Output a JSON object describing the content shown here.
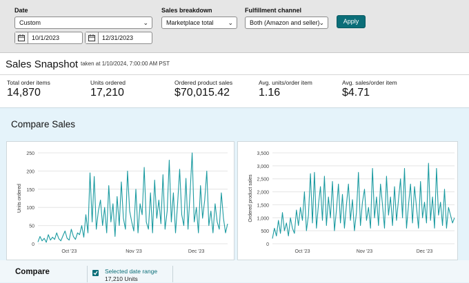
{
  "filters": {
    "date_label": "Date",
    "date_select": "Custom",
    "start_date": "10/1/2023",
    "end_date": "12/31/2023",
    "breakdown_label": "Sales breakdown",
    "breakdown_select": "Marketplace total",
    "fulfillment_label": "Fulfillment channel",
    "fulfillment_select": "Both (Amazon and seller)",
    "apply_label": "Apply"
  },
  "snapshot": {
    "title": "Sales Snapshot",
    "taken": "taken at 1/10/2024, 7:00:00 AM PST",
    "metrics": [
      {
        "label": "Total order items",
        "value": "14,870"
      },
      {
        "label": "Units ordered",
        "value": "17,210"
      },
      {
        "label": "Ordered product sales",
        "value": "$70,015.42"
      },
      {
        "label": "Avg. units/order item",
        "value": "1.16"
      },
      {
        "label": "Avg. sales/order item",
        "value": "$4.71"
      }
    ]
  },
  "compare": {
    "title": "Compare Sales",
    "bottom_title": "Compare",
    "range_label": "Selected date range",
    "range_units": "17,210 Units"
  },
  "colors": {
    "series": "#1a9aa0",
    "accent": "#0b6e78"
  },
  "chart_data": [
    {
      "type": "line",
      "ylabel": "Units ordered",
      "ylim": [
        0,
        250
      ],
      "yticks": [
        0,
        50,
        100,
        150,
        200,
        250
      ],
      "xticks": [
        {
          "label": "Oct '23",
          "x": 16
        },
        {
          "label": "Nov '23",
          "x": 47
        },
        {
          "label": "Dec '23",
          "x": 77
        }
      ],
      "x": [
        1,
        2,
        3,
        4,
        5,
        6,
        7,
        8,
        9,
        10,
        11,
        12,
        13,
        14,
        15,
        16,
        17,
        18,
        19,
        20,
        21,
        22,
        23,
        24,
        25,
        26,
        27,
        28,
        29,
        30,
        31,
        32,
        33,
        34,
        35,
        36,
        37,
        38,
        39,
        40,
        41,
        42,
        43,
        44,
        45,
        46,
        47,
        48,
        49,
        50,
        51,
        52,
        53,
        54,
        55,
        56,
        57,
        58,
        59,
        60,
        61,
        62,
        63,
        64,
        65,
        66,
        67,
        68,
        69,
        70,
        71,
        72,
        73,
        74,
        75,
        76,
        77,
        78,
        79,
        80,
        81,
        82,
        83,
        84,
        85,
        86,
        87,
        88,
        89,
        90,
        91,
        92
      ],
      "values": [
        5,
        20,
        8,
        15,
        4,
        25,
        10,
        18,
        12,
        30,
        14,
        8,
        22,
        35,
        15,
        10,
        40,
        20,
        12,
        30,
        25,
        50,
        18,
        80,
        30,
        195,
        60,
        185,
        40,
        90,
        120,
        50,
        100,
        30,
        160,
        60,
        110,
        20,
        130,
        50,
        170,
        70,
        40,
        200,
        90,
        60,
        35,
        150,
        30,
        110,
        80,
        210,
        60,
        40,
        140,
        30,
        175,
        70,
        120,
        55,
        190,
        40,
        90,
        230,
        60,
        140,
        30,
        110,
        205,
        80,
        50,
        180,
        40,
        140,
        250,
        60,
        100,
        30,
        160,
        70,
        120,
        200,
        50,
        90,
        30,
        110,
        60,
        40,
        140,
        70,
        30,
        55
      ]
    },
    {
      "type": "line",
      "ylabel": "Ordered product sales",
      "ylim": [
        0,
        3500
      ],
      "yticks": [
        0,
        500,
        1000,
        1500,
        2000,
        2500,
        3000,
        3500
      ],
      "yticklabels": [
        "0",
        "500",
        "1,000",
        "1,500",
        "2,000",
        "2,500",
        "3,000",
        "3,500"
      ],
      "xticks": [
        {
          "label": "Oct '23",
          "x": 16
        },
        {
          "label": "Nov '23",
          "x": 47
        },
        {
          "label": "Dec '23",
          "x": 77
        }
      ],
      "x": [
        1,
        2,
        3,
        4,
        5,
        6,
        7,
        8,
        9,
        10,
        11,
        12,
        13,
        14,
        15,
        16,
        17,
        18,
        19,
        20,
        21,
        22,
        23,
        24,
        25,
        26,
        27,
        28,
        29,
        30,
        31,
        32,
        33,
        34,
        35,
        36,
        37,
        38,
        39,
        40,
        41,
        42,
        43,
        44,
        45,
        46,
        47,
        48,
        49,
        50,
        51,
        52,
        53,
        54,
        55,
        56,
        57,
        58,
        59,
        60,
        61,
        62,
        63,
        64,
        65,
        66,
        67,
        68,
        69,
        70,
        71,
        72,
        73,
        74,
        75,
        76,
        77,
        78,
        79,
        80,
        81,
        82,
        83,
        84,
        85,
        86,
        87,
        88,
        89,
        90,
        91,
        92
      ],
      "values": [
        200,
        600,
        300,
        900,
        400,
        1200,
        500,
        800,
        300,
        1000,
        600,
        400,
        1300,
        700,
        1400,
        900,
        2000,
        500,
        1100,
        2700,
        800,
        2750,
        600,
        1500,
        2200,
        900,
        2600,
        700,
        1800,
        1000,
        2400,
        500,
        1300,
        2300,
        800,
        1900,
        600,
        1500,
        2300,
        900,
        1700,
        500,
        1200,
        2750,
        700,
        1600,
        2100,
        900,
        1400,
        600,
        2900,
        1000,
        1800,
        700,
        2300,
        1500,
        600,
        2600,
        1100,
        1800,
        700,
        2200,
        900,
        1700,
        2500,
        1000,
        2900,
        600,
        1500,
        2300,
        800,
        2200,
        1400,
        600,
        2400,
        1000,
        1600,
        800,
        3100,
        900,
        1800,
        600,
        2900,
        1100,
        1600,
        700,
        2100,
        600,
        1400,
        1100,
        800,
        1000
      ]
    }
  ]
}
